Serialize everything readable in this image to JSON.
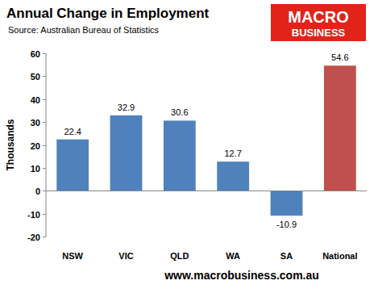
{
  "chart_data": {
    "type": "bar",
    "title": "Annual Change in Employment",
    "subtitle": "Source: Australian Bureau of Statistics",
    "y_label": "Thousands",
    "logo": [
      "MACRO",
      "BUSINESS"
    ],
    "footer": "www.macrobusiness.com.au",
    "categories": [
      "NSW",
      "VIC",
      "QLD",
      "WA",
      "SA",
      "National"
    ],
    "values": [
      22.4,
      32.9,
      30.6,
      12.7,
      -10.9,
      54.6
    ],
    "colors": [
      "#4f81bd",
      "#4f81bd",
      "#4f81bd",
      "#4f81bd",
      "#4f81bd",
      "#c0504d"
    ],
    "ylim": [
      -20,
      60
    ],
    "yticks": [
      -20,
      -10,
      0,
      10,
      20,
      30,
      40,
      50,
      60
    ],
    "grid": false,
    "data_labels": true
  }
}
